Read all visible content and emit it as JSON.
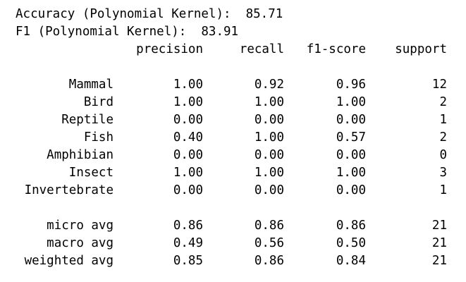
{
  "summary": {
    "accuracy_line": "Accuracy (Polynomial Kernel):  85.71",
    "f1_line": "F1 (Polynomial Kernel):  83.91"
  },
  "report": {
    "headers": [
      "precision",
      "recall",
      "f1-score",
      "support"
    ],
    "rows": [
      {
        "label": "Mammal",
        "precision": "1.00",
        "recall": "0.92",
        "f1": "0.96",
        "support": "12"
      },
      {
        "label": "Bird",
        "precision": "1.00",
        "recall": "1.00",
        "f1": "1.00",
        "support": "2"
      },
      {
        "label": "Reptile",
        "precision": "0.00",
        "recall": "0.00",
        "f1": "0.00",
        "support": "1"
      },
      {
        "label": "Fish",
        "precision": "0.40",
        "recall": "1.00",
        "f1": "0.57",
        "support": "2"
      },
      {
        "label": "Amphibian",
        "precision": "0.00",
        "recall": "0.00",
        "f1": "0.00",
        "support": "0"
      },
      {
        "label": "Insect",
        "precision": "1.00",
        "recall": "1.00",
        "f1": "1.00",
        "support": "3"
      },
      {
        "label": "Invertebrate",
        "precision": "0.00",
        "recall": "0.00",
        "f1": "0.00",
        "support": "1"
      }
    ],
    "averages": [
      {
        "label": "micro avg",
        "precision": "0.86",
        "recall": "0.86",
        "f1": "0.86",
        "support": "21"
      },
      {
        "label": "macro avg",
        "precision": "0.49",
        "recall": "0.56",
        "f1": "0.50",
        "support": "21"
      },
      {
        "label": "weighted avg",
        "precision": "0.85",
        "recall": "0.86",
        "f1": "0.84",
        "support": "21"
      }
    ]
  }
}
